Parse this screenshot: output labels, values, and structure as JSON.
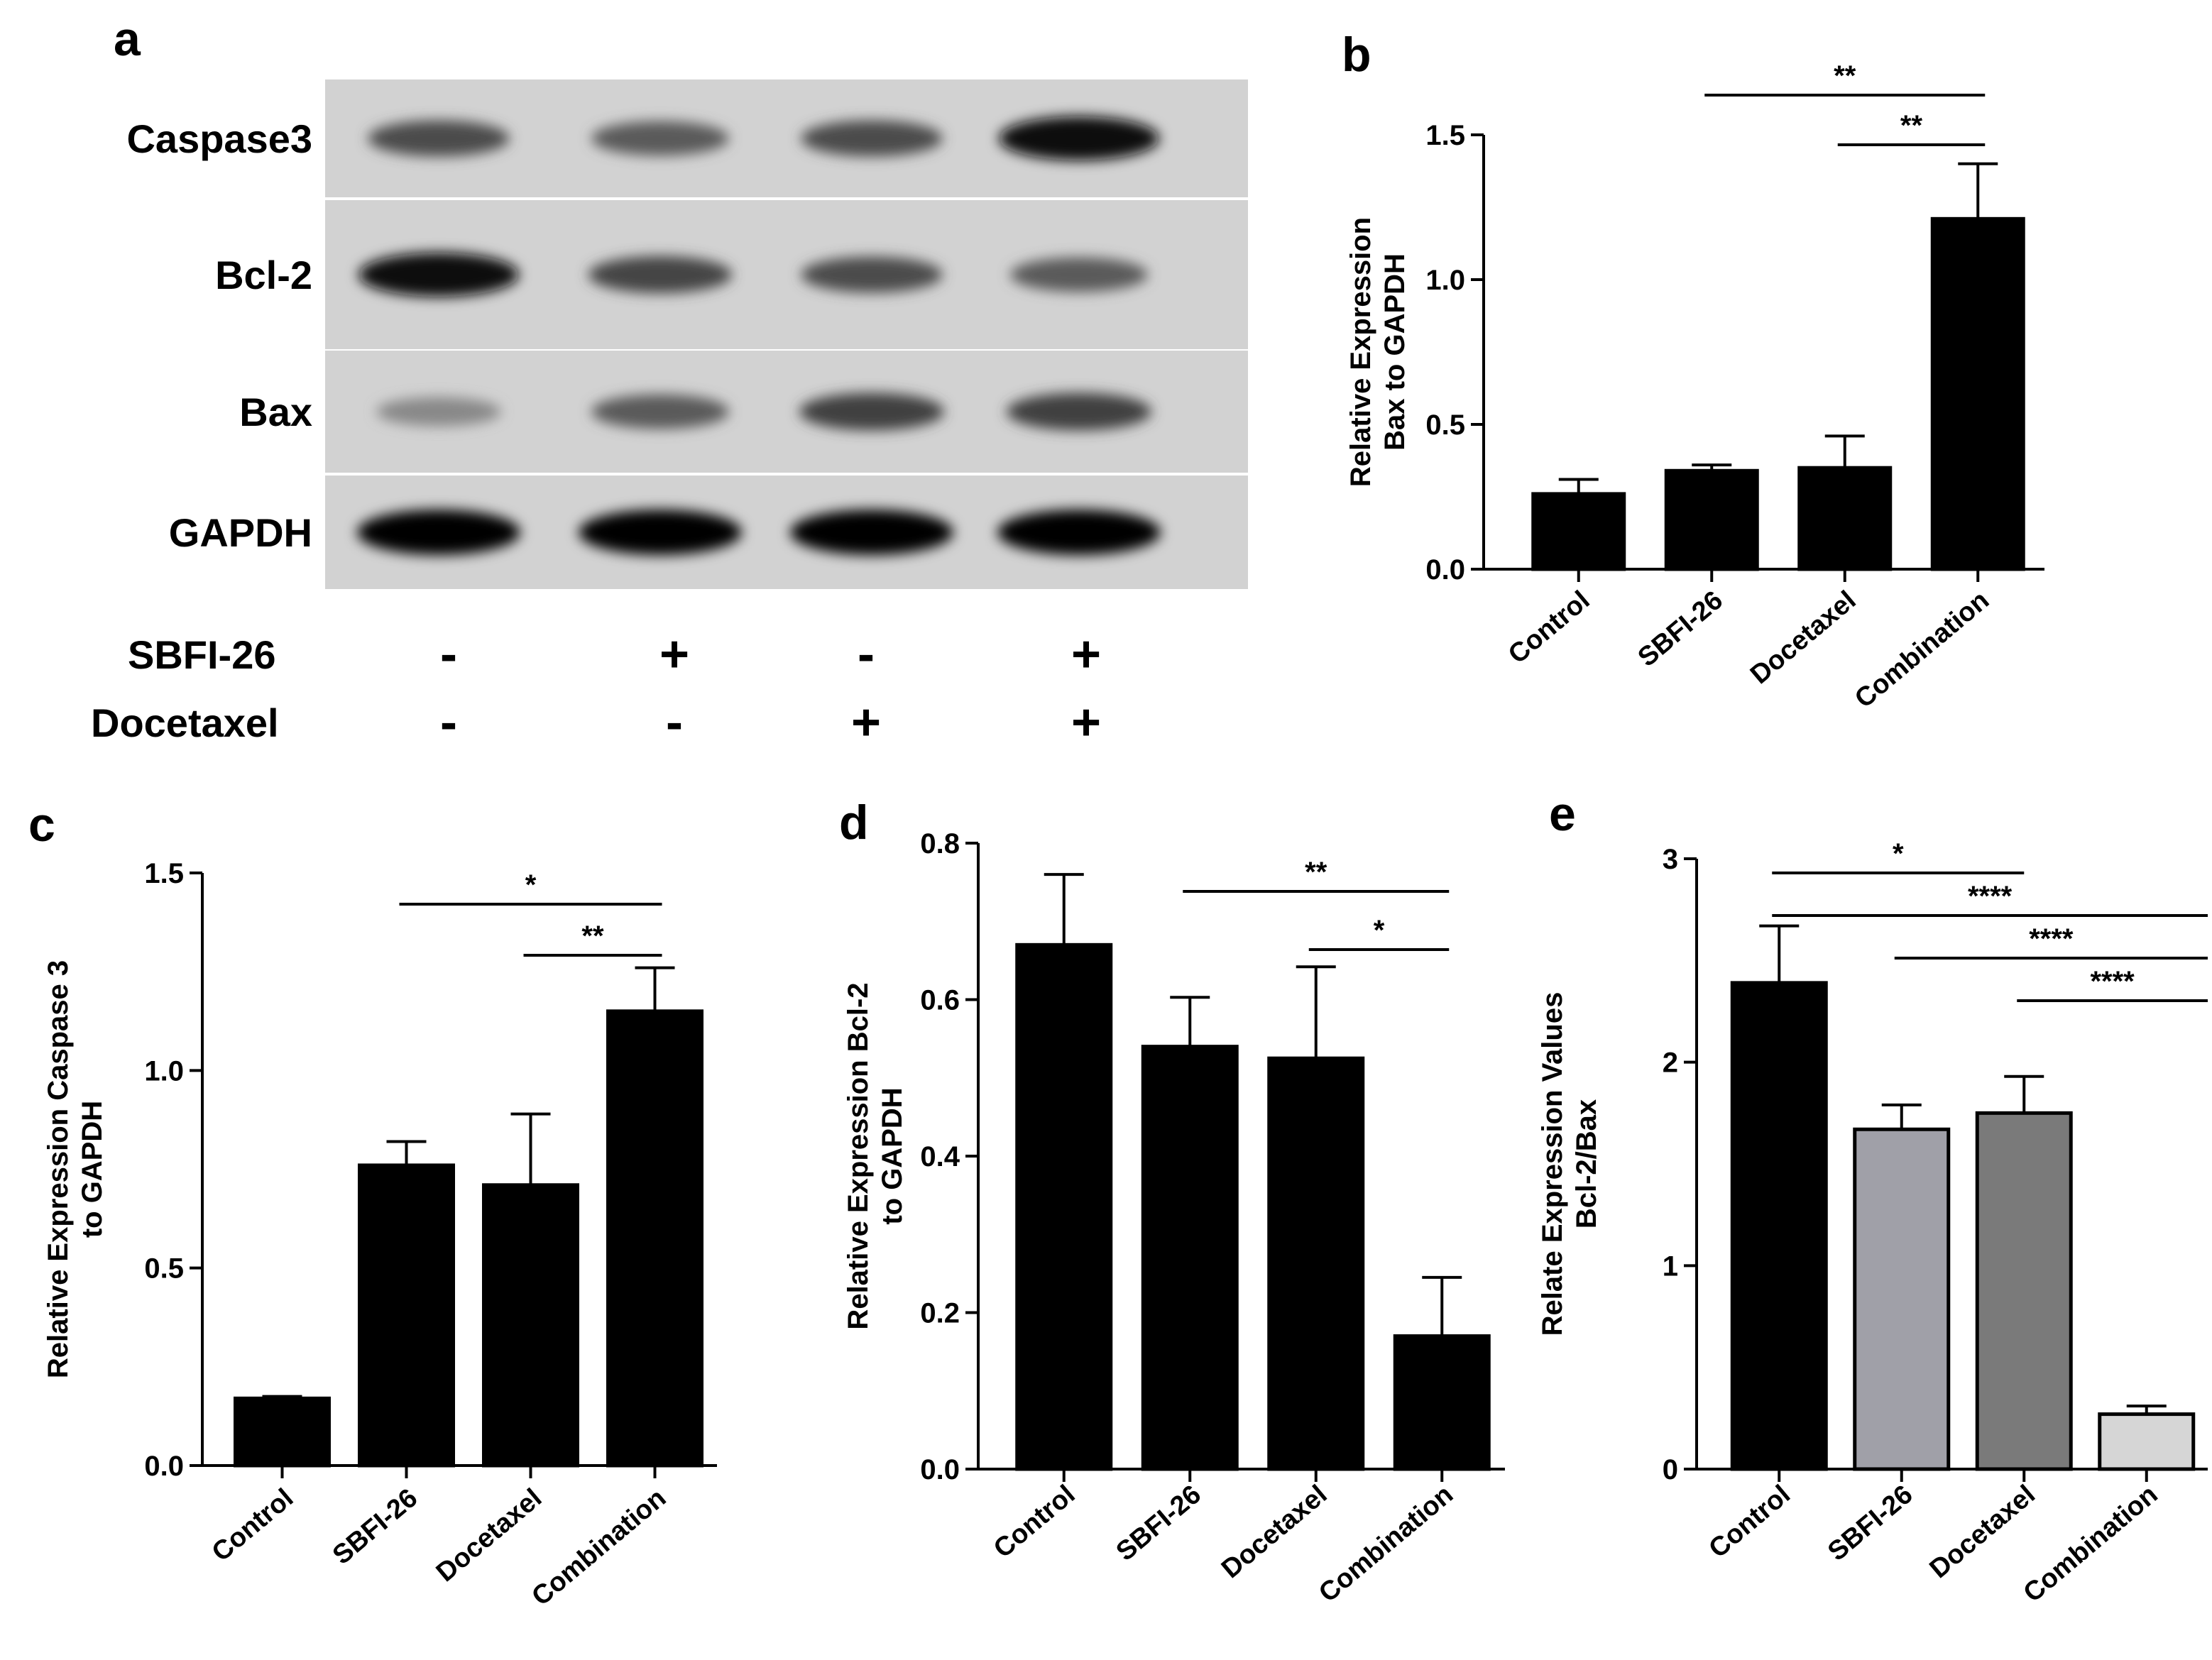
{
  "panel_a": {
    "label": "a",
    "rows": [
      "Caspase3",
      "Bcl-2",
      "Bax",
      "GAPDH"
    ],
    "band_intensity": [
      [
        0.62,
        0.55,
        0.62,
        0.95
      ],
      [
        0.95,
        0.66,
        0.62,
        0.55
      ],
      [
        0.32,
        0.55,
        0.68,
        0.68
      ],
      [
        1.0,
        1.0,
        1.0,
        1.0
      ]
    ],
    "treatments": [
      {
        "name": "SBFI-26",
        "signs": [
          "-",
          "+",
          "-",
          "+"
        ]
      },
      {
        "name": "Docetaxel",
        "signs": [
          "-",
          "-",
          "+",
          "+"
        ]
      }
    ]
  },
  "chart_data": [
    {
      "panel": "b",
      "type": "bar",
      "categories": [
        "Control",
        "SBFI-26",
        "Docetaxel",
        "Combination"
      ],
      "values": [
        0.26,
        0.34,
        0.35,
        1.21
      ],
      "errors": [
        0.05,
        0.02,
        0.11,
        0.19
      ],
      "colors": [
        "#000000",
        "#000000",
        "#000000",
        "#000000"
      ],
      "ylabel": [
        "Relative Expression",
        "Bax to GAPDH"
      ],
      "ylim": [
        0,
        1.5
      ],
      "yticks": [
        "0.0",
        "0.5",
        "1.0",
        "1.5"
      ],
      "significance": [
        {
          "from": 1,
          "to": 3,
          "label": "**"
        },
        {
          "from": 2,
          "to": 3,
          "label": "**"
        }
      ]
    },
    {
      "panel": "c",
      "type": "bar",
      "categories": [
        "Control",
        "SBFI-26",
        "Docetaxel",
        "Combination"
      ],
      "values": [
        0.17,
        0.76,
        0.71,
        1.15
      ],
      "errors": [
        0.005,
        0.06,
        0.18,
        0.11
      ],
      "colors": [
        "#000000",
        "#000000",
        "#000000",
        "#000000"
      ],
      "ylabel": [
        "Relative Expression Caspase 3",
        "to GAPDH"
      ],
      "ylim": [
        0,
        1.5
      ],
      "yticks": [
        "0.0",
        "0.5",
        "1.0",
        "1.5"
      ],
      "significance": [
        {
          "from": 1,
          "to": 3,
          "label": "*"
        },
        {
          "from": 2,
          "to": 3,
          "label": "**"
        }
      ]
    },
    {
      "panel": "d",
      "type": "bar",
      "categories": [
        "Control",
        "SBFI-26",
        "Docetaxel",
        "Combination"
      ],
      "values": [
        0.67,
        0.54,
        0.525,
        0.17
      ],
      "errors": [
        0.09,
        0.063,
        0.117,
        0.075
      ],
      "colors": [
        "#000000",
        "#000000",
        "#000000",
        "#000000"
      ],
      "ylabel": [
        "Relative Expression Bcl-2",
        "to GAPDH"
      ],
      "ylim": [
        0,
        0.8
      ],
      "yticks": [
        "0.0",
        "0.2",
        "0.4",
        "0.6",
        "0.8"
      ],
      "significance": [
        {
          "from": 1,
          "to": 3,
          "label": "**"
        },
        {
          "from": 2,
          "to": 3,
          "label": "*"
        }
      ]
    },
    {
      "panel": "e",
      "type": "bar",
      "categories": [
        "Control",
        "SBFI-26",
        "Docetaxel",
        "Combination"
      ],
      "values": [
        2.39,
        1.67,
        1.75,
        0.27
      ],
      "errors": [
        0.28,
        0.12,
        0.18,
        0.04
      ],
      "colors": [
        "#000000",
        "#a0a0a8",
        "#7a7a7a",
        "#d6d6d6"
      ],
      "ylabel": [
        "Relate Expression Values",
        "Bcl-2/Bax"
      ],
      "ylim": [
        0,
        3
      ],
      "yticks": [
        "0",
        "1",
        "2",
        "3"
      ],
      "significance": [
        {
          "from": 0,
          "to": 2,
          "label": "*"
        },
        {
          "from": 0,
          "to": 3,
          "label": "****"
        },
        {
          "from": 1,
          "to": 3,
          "label": "****"
        },
        {
          "from": 2,
          "to": 3,
          "label": "****"
        }
      ]
    }
  ]
}
